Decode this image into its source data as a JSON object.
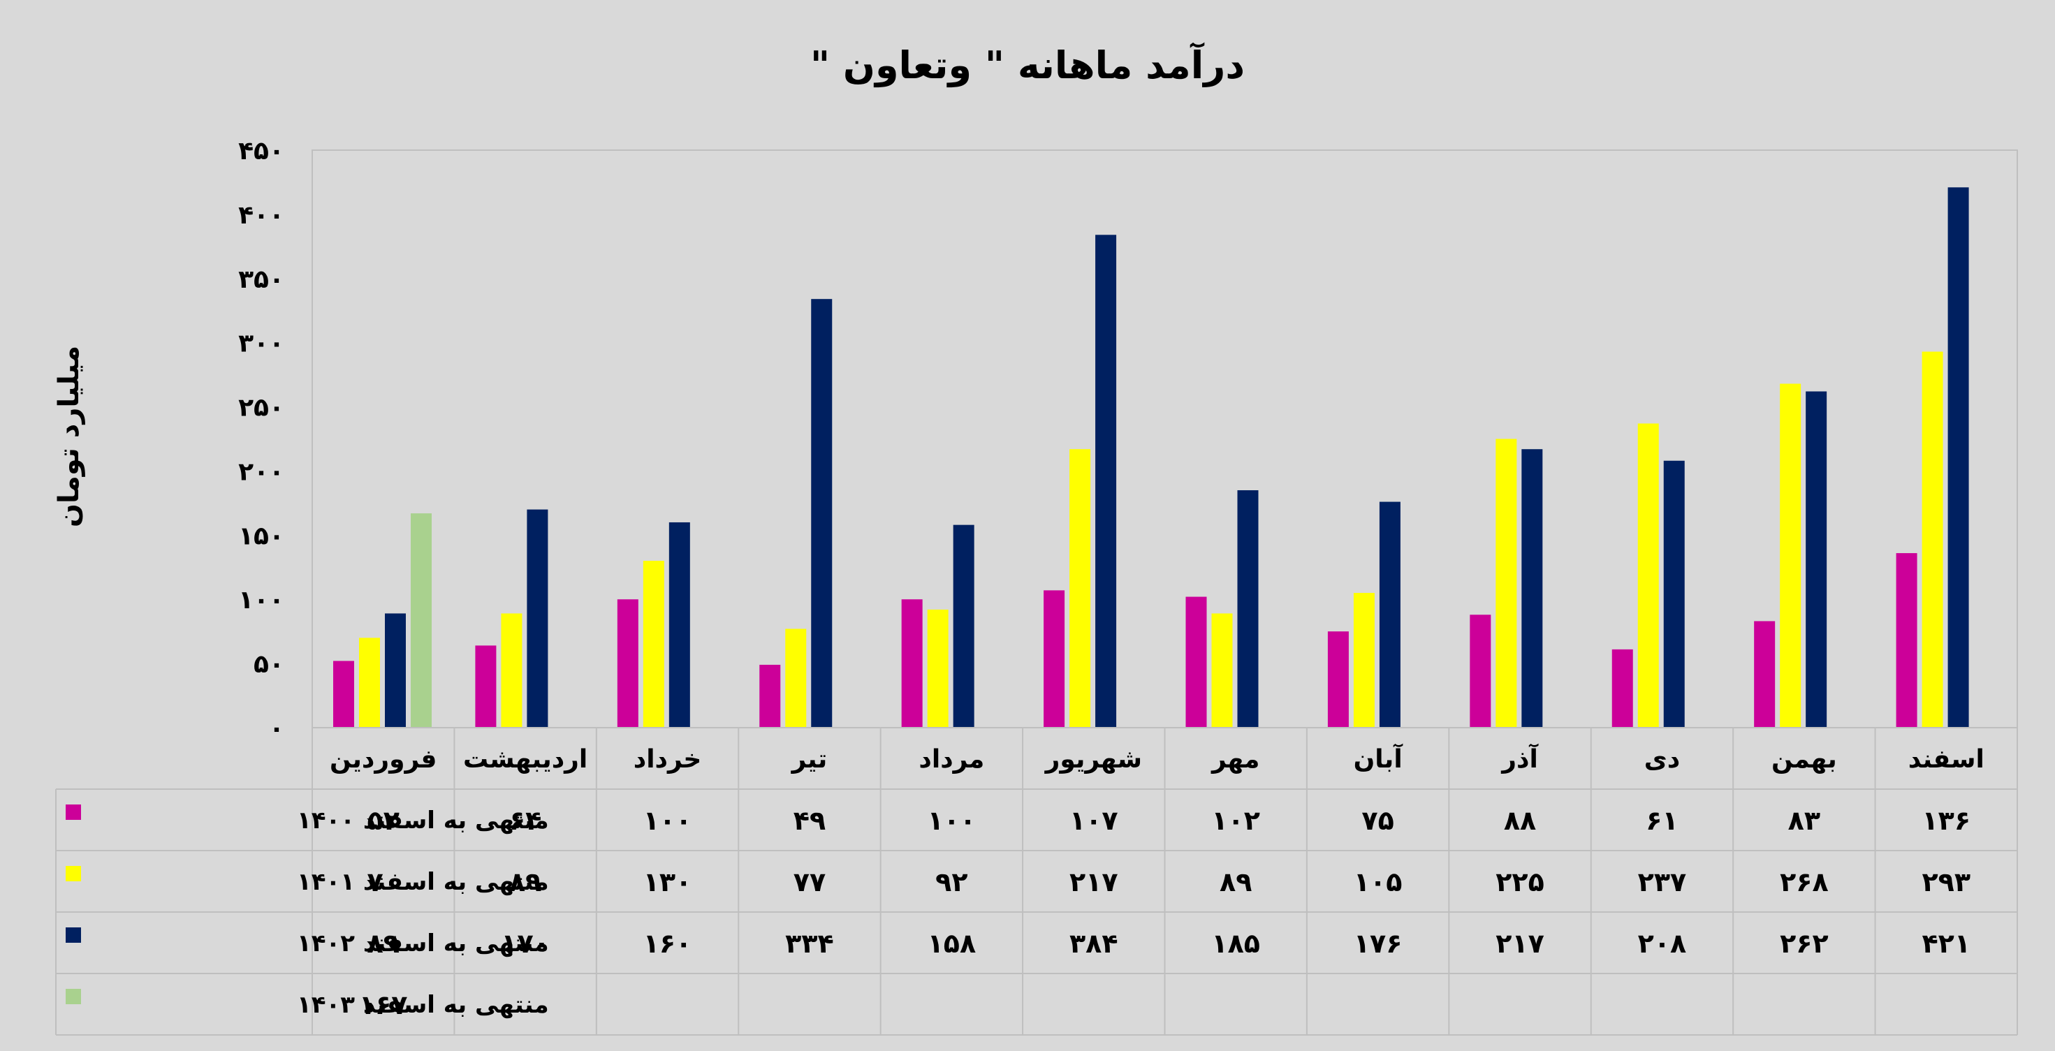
{
  "chart_data": {
    "type": "bar",
    "title": "درآمد ماهانه \" وتعاون \"",
    "ylabel": "میلیارد تومان",
    "ylim": [
      0,
      450
    ],
    "yticks": [
      "۰",
      "۵۰",
      "۱۰۰",
      "۱۵۰",
      "۲۰۰",
      "۲۵۰",
      "۳۰۰",
      "۳۵۰",
      "۴۰۰",
      "۴۵۰"
    ],
    "ytick_values": [
      0,
      50,
      100,
      150,
      200,
      250,
      300,
      350,
      400,
      450
    ],
    "grid": false,
    "legend": "data-table",
    "categories": [
      "فروردین",
      "اردیبهشت",
      "خرداد",
      "تیر",
      "مرداد",
      "شهریور",
      "مهر",
      "آبان",
      "آذر",
      "دی",
      "بهمن",
      "اسفند"
    ],
    "series": [
      {
        "name": "منتهی به اسفند ۱۴۰۰",
        "color": "#cc0099",
        "values": [
          52,
          64,
          100,
          49,
          100,
          107,
          102,
          75,
          88,
          61,
          83,
          136
        ],
        "labels": [
          "۵۲",
          "۶۴",
          "۱۰۰",
          "۴۹",
          "۱۰۰",
          "۱۰۷",
          "۱۰۲",
          "۷۵",
          "۸۸",
          "۶۱",
          "۸۳",
          "۱۳۶"
        ]
      },
      {
        "name": "منتهی به اسفند ۱۴۰۱",
        "color": "#ffff00",
        "values": [
          70,
          89,
          130,
          77,
          92,
          217,
          89,
          105,
          225,
          237,
          268,
          293
        ],
        "labels": [
          "۷۰",
          "۸۹",
          "۱۳۰",
          "۷۷",
          "۹۲",
          "۲۱۷",
          "۸۹",
          "۱۰۵",
          "۲۲۵",
          "۲۳۷",
          "۲۶۸",
          "۲۹۳"
        ]
      },
      {
        "name": "منتهی به اسفند ۱۴۰۲",
        "color": "#002060",
        "values": [
          89,
          170,
          160,
          334,
          158,
          384,
          185,
          176,
          217,
          208,
          262,
          421
        ],
        "labels": [
          "۸۹",
          "۱۷۰",
          "۱۶۰",
          "۳۳۴",
          "۱۵۸",
          "۳۸۴",
          "۱۸۵",
          "۱۷۶",
          "۲۱۷",
          "۲۰۸",
          "۲۶۲",
          "۴۲۱"
        ]
      },
      {
        "name": "منتهی به اسفند ۱۴۰۳",
        "color": "#a9d18e",
        "values": [
          167,
          null,
          null,
          null,
          null,
          null,
          null,
          null,
          null,
          null,
          null,
          null
        ],
        "labels": [
          "۱۶۷",
          "",
          "",
          "",
          "",
          "",
          "",
          "",
          "",
          "",
          "",
          ""
        ]
      }
    ]
  }
}
